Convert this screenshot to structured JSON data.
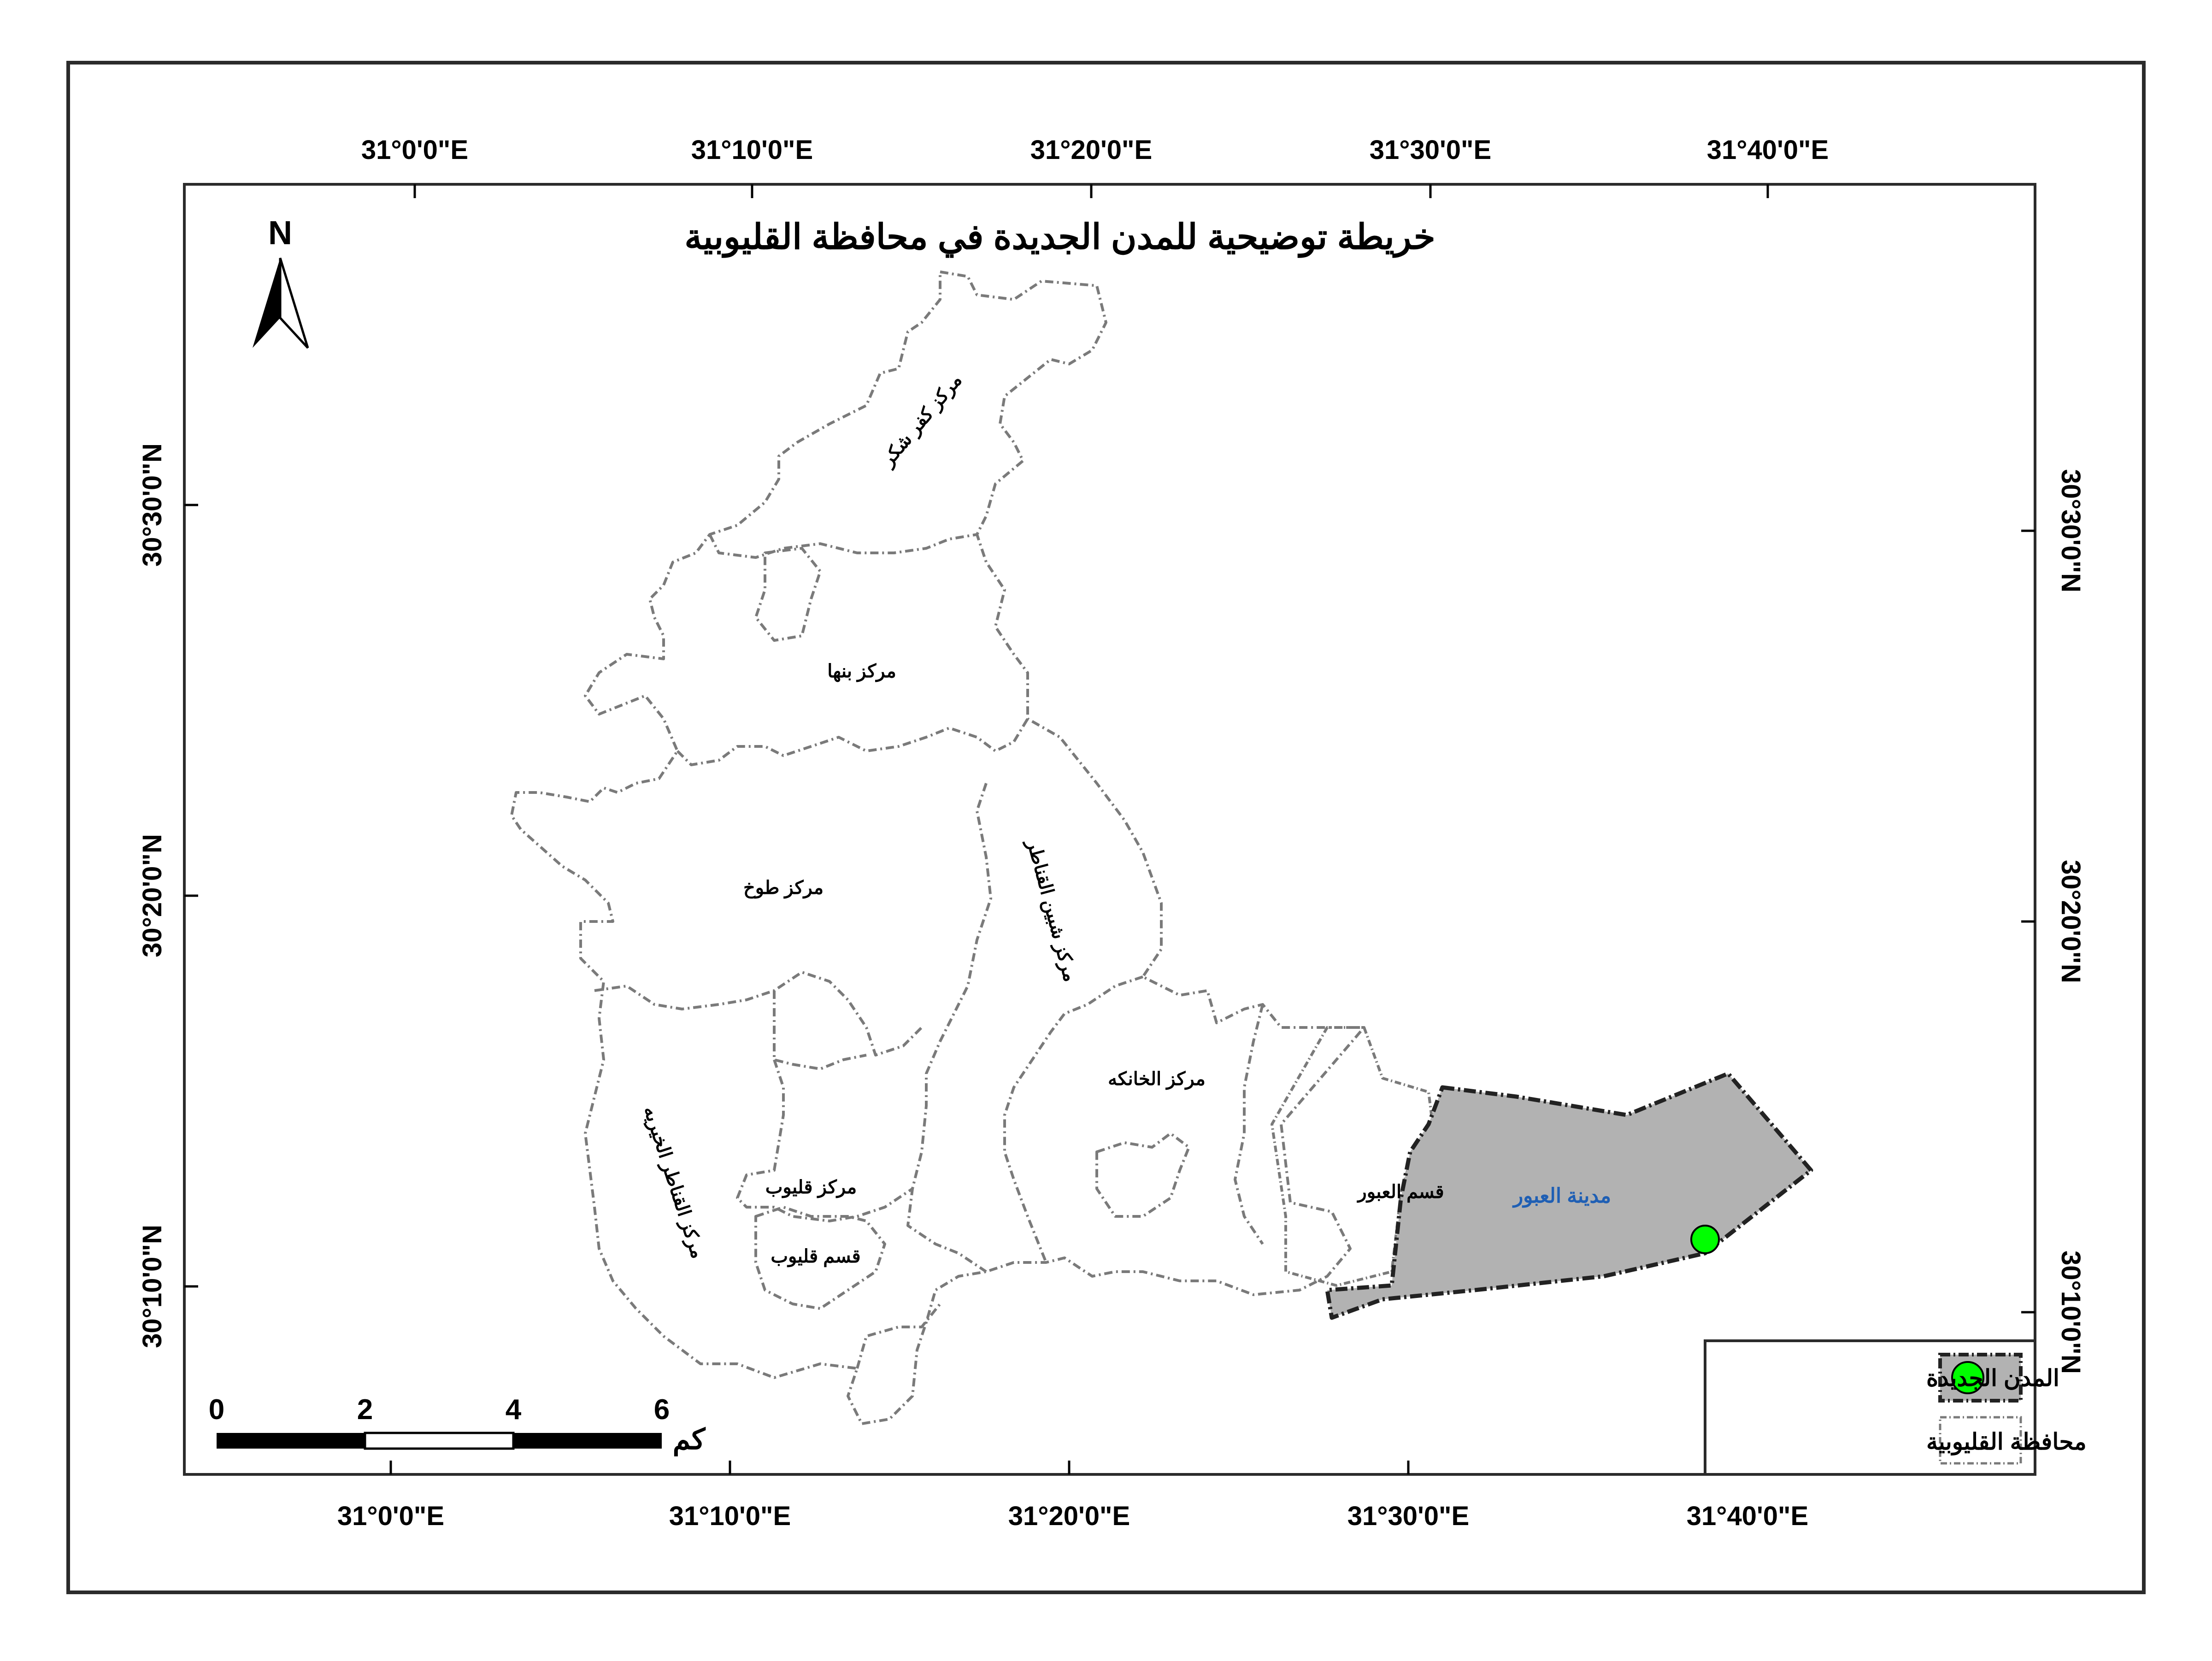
{
  "map": {
    "title": "خريطة توضيحية للمدن الجديدة في محافظة القليوبية",
    "north_label": "N",
    "top_longitudes": [
      "31°0'0\"E",
      "31°10'0\"E",
      "31°20'0\"E",
      "31°30'0\"E",
      "31°40'0\"E"
    ],
    "bottom_longitudes": [
      "31°0'0\"E",
      "31°10'0\"E",
      "31°20'0\"E",
      "31°30'0\"E",
      "31°40'0\"E"
    ],
    "left_latitudes": [
      "30°30'0\"N",
      "30°20'0\"N",
      "30°10'0\"N"
    ],
    "right_latitudes": [
      "30°30'0\"N",
      "30°20'0\"N",
      "30°10'0\"N"
    ],
    "districts": {
      "kafr_shukr": "مركز كفر شكر",
      "banha": "مركز بنها",
      "toukh": "مركز طوخ",
      "shebin_el_qanater": "مركز شبين القناطر",
      "khanka": "مركز الخانكه",
      "qalyub_markaz": "مركز قليوب",
      "qalyub_qism": "قسم قليوب",
      "qanater_khayriya": "مركز القناطر الخيريه",
      "obour_qism": "قسم العبور",
      "obour_city": "مدينة العبور"
    },
    "scale": {
      "ticks": [
        "0",
        "2",
        "4",
        "6"
      ],
      "unit": "كم"
    },
    "legend": {
      "new_cities": "المدن الجديدة",
      "governorate": "محافظة القليوبية"
    },
    "colors": {
      "new_city_fill": "#b2b2b2",
      "city_marker": "#00ff00",
      "boundary": "#7a7a7a",
      "obour_label": "#1f5fb4"
    }
  }
}
